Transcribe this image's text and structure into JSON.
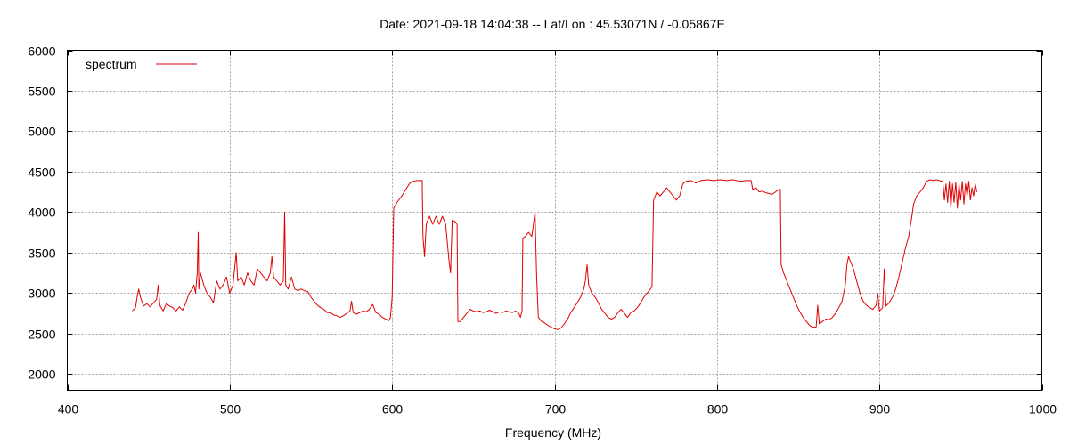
{
  "chart_data": {
    "type": "line",
    "title": "Date: 2021-09-18 14:04:38  --  Lat/Lon : 45.53071N / -0.05867E",
    "xlabel": "Frequency (MHz)",
    "ylabel": "",
    "xlim": [
      400,
      1000
    ],
    "ylim": [
      1800,
      6000
    ],
    "xticks": [
      400,
      500,
      600,
      700,
      800,
      900,
      1000
    ],
    "yticks": [
      2000,
      2500,
      3000,
      3500,
      4000,
      4500,
      5000,
      5500,
      6000
    ],
    "grid": true,
    "legend": "top-left",
    "series": [
      {
        "name": "spectrum",
        "color": "#e00000",
        "points": [
          [
            440,
            2780
          ],
          [
            442,
            2820
          ],
          [
            443,
            2950
          ],
          [
            444,
            3050
          ],
          [
            445,
            2950
          ],
          [
            447,
            2840
          ],
          [
            449,
            2870
          ],
          [
            451,
            2830
          ],
          [
            453,
            2880
          ],
          [
            455,
            2920
          ],
          [
            456,
            3100
          ],
          [
            457,
            2850
          ],
          [
            459,
            2780
          ],
          [
            461,
            2870
          ],
          [
            463,
            2840
          ],
          [
            465,
            2820
          ],
          [
            467,
            2780
          ],
          [
            469,
            2830
          ],
          [
            471,
            2790
          ],
          [
            473,
            2880
          ],
          [
            475,
            3000
          ],
          [
            477,
            3050
          ],
          [
            478,
            3100
          ],
          [
            479,
            3000
          ],
          [
            480,
            3250
          ],
          [
            480.6,
            3750
          ],
          [
            481,
            3050
          ],
          [
            482,
            3250
          ],
          [
            484,
            3100
          ],
          [
            486,
            3000
          ],
          [
            488,
            2950
          ],
          [
            490,
            2880
          ],
          [
            492,
            3150
          ],
          [
            494,
            3050
          ],
          [
            496,
            3100
          ],
          [
            498,
            3200
          ],
          [
            500,
            3000
          ],
          [
            502,
            3100
          ],
          [
            503,
            3300
          ],
          [
            504,
            3500
          ],
          [
            505,
            3150
          ],
          [
            507,
            3200
          ],
          [
            509,
            3100
          ],
          [
            511,
            3250
          ],
          [
            513,
            3150
          ],
          [
            515,
            3100
          ],
          [
            517,
            3300
          ],
          [
            519,
            3250
          ],
          [
            521,
            3200
          ],
          [
            523,
            3150
          ],
          [
            525,
            3250
          ],
          [
            526,
            3450
          ],
          [
            527,
            3200
          ],
          [
            529,
            3150
          ],
          [
            531,
            3100
          ],
          [
            533,
            3150
          ],
          [
            533.8,
            4000
          ],
          [
            534.5,
            3100
          ],
          [
            536,
            3050
          ],
          [
            538,
            3200
          ],
          [
            540,
            3050
          ],
          [
            542,
            3030
          ],
          [
            544,
            3050
          ],
          [
            546,
            3030
          ],
          [
            548,
            3020
          ],
          [
            550,
            2950
          ],
          [
            552,
            2900
          ],
          [
            554,
            2850
          ],
          [
            556,
            2820
          ],
          [
            558,
            2800
          ],
          [
            560,
            2760
          ],
          [
            562,
            2760
          ],
          [
            564,
            2730
          ],
          [
            566,
            2720
          ],
          [
            568,
            2700
          ],
          [
            570,
            2720
          ],
          [
            572,
            2750
          ],
          [
            574,
            2780
          ],
          [
            575,
            2900
          ],
          [
            576,
            2760
          ],
          [
            578,
            2740
          ],
          [
            580,
            2760
          ],
          [
            582,
            2780
          ],
          [
            584,
            2770
          ],
          [
            586,
            2800
          ],
          [
            588,
            2860
          ],
          [
            590,
            2760
          ],
          [
            592,
            2740
          ],
          [
            594,
            2700
          ],
          [
            596,
            2680
          ],
          [
            598,
            2660
          ],
          [
            599,
            2700
          ],
          [
            600,
            2950
          ],
          [
            601,
            4050
          ],
          [
            603,
            4120
          ],
          [
            606,
            4200
          ],
          [
            609,
            4300
          ],
          [
            611,
            4360
          ],
          [
            613,
            4380
          ],
          [
            615,
            4390
          ],
          [
            617,
            4390
          ],
          [
            618.5,
            4390
          ],
          [
            619,
            3700
          ],
          [
            620,
            3450
          ],
          [
            621,
            3850
          ],
          [
            623,
            3950
          ],
          [
            625,
            3850
          ],
          [
            627,
            3950
          ],
          [
            629,
            3850
          ],
          [
            631,
            3950
          ],
          [
            633,
            3850
          ],
          [
            635,
            3400
          ],
          [
            636,
            3250
          ],
          [
            637,
            3900
          ],
          [
            639,
            3880
          ],
          [
            640,
            3850
          ],
          [
            640.5,
            2650
          ],
          [
            642,
            2650
          ],
          [
            644,
            2700
          ],
          [
            646,
            2750
          ],
          [
            648,
            2800
          ],
          [
            650,
            2780
          ],
          [
            652,
            2770
          ],
          [
            654,
            2780
          ],
          [
            656,
            2760
          ],
          [
            658,
            2770
          ],
          [
            660,
            2790
          ],
          [
            662,
            2770
          ],
          [
            664,
            2750
          ],
          [
            666,
            2770
          ],
          [
            668,
            2760
          ],
          [
            670,
            2780
          ],
          [
            672,
            2770
          ],
          [
            674,
            2760
          ],
          [
            676,
            2780
          ],
          [
            678,
            2750
          ],
          [
            679,
            2700
          ],
          [
            680,
            2780
          ],
          [
            680.5,
            3680
          ],
          [
            682,
            3700
          ],
          [
            684,
            3750
          ],
          [
            686,
            3700
          ],
          [
            688,
            4000
          ],
          [
            689,
            3200
          ],
          [
            690,
            2700
          ],
          [
            692,
            2650
          ],
          [
            694,
            2630
          ],
          [
            696,
            2600
          ],
          [
            698,
            2580
          ],
          [
            700,
            2560
          ],
          [
            702,
            2550
          ],
          [
            704,
            2570
          ],
          [
            706,
            2620
          ],
          [
            708,
            2680
          ],
          [
            710,
            2760
          ],
          [
            712,
            2820
          ],
          [
            714,
            2880
          ],
          [
            716,
            2950
          ],
          [
            718,
            3050
          ],
          [
            719,
            3150
          ],
          [
            720,
            3350
          ],
          [
            721,
            3100
          ],
          [
            723,
            3000
          ],
          [
            725,
            2950
          ],
          [
            727,
            2880
          ],
          [
            729,
            2800
          ],
          [
            731,
            2750
          ],
          [
            733,
            2700
          ],
          [
            735,
            2680
          ],
          [
            737,
            2700
          ],
          [
            739,
            2760
          ],
          [
            741,
            2800
          ],
          [
            743,
            2750
          ],
          [
            745,
            2700
          ],
          [
            747,
            2760
          ],
          [
            749,
            2780
          ],
          [
            751,
            2820
          ],
          [
            753,
            2880
          ],
          [
            755,
            2950
          ],
          [
            757,
            3000
          ],
          [
            759,
            3050
          ],
          [
            760,
            3080
          ],
          [
            761,
            4150
          ],
          [
            763,
            4250
          ],
          [
            765,
            4200
          ],
          [
            767,
            4250
          ],
          [
            769,
            4300
          ],
          [
            771,
            4250
          ],
          [
            773,
            4200
          ],
          [
            775,
            4150
          ],
          [
            777,
            4200
          ],
          [
            779,
            4350
          ],
          [
            781,
            4380
          ],
          [
            784,
            4390
          ],
          [
            787,
            4360
          ],
          [
            790,
            4390
          ],
          [
            794,
            4400
          ],
          [
            798,
            4390
          ],
          [
            802,
            4400
          ],
          [
            806,
            4390
          ],
          [
            810,
            4400
          ],
          [
            814,
            4380
          ],
          [
            818,
            4390
          ],
          [
            821,
            4390
          ],
          [
            822,
            4280
          ],
          [
            824,
            4300
          ],
          [
            826,
            4250
          ],
          [
            828,
            4260
          ],
          [
            830,
            4240
          ],
          [
            832,
            4230
          ],
          [
            834,
            4220
          ],
          [
            836,
            4250
          ],
          [
            838,
            4280
          ],
          [
            839,
            4280
          ],
          [
            839.5,
            3350
          ],
          [
            841,
            3250
          ],
          [
            843,
            3150
          ],
          [
            845,
            3050
          ],
          [
            847,
            2950
          ],
          [
            849,
            2850
          ],
          [
            851,
            2770
          ],
          [
            853,
            2700
          ],
          [
            855,
            2650
          ],
          [
            857,
            2600
          ],
          [
            859,
            2580
          ],
          [
            861,
            2580
          ],
          [
            862,
            2850
          ],
          [
            863,
            2620
          ],
          [
            865,
            2650
          ],
          [
            867,
            2680
          ],
          [
            869,
            2670
          ],
          [
            871,
            2700
          ],
          [
            873,
            2750
          ],
          [
            875,
            2820
          ],
          [
            877,
            2900
          ],
          [
            879,
            3100
          ],
          [
            880,
            3350
          ],
          [
            881,
            3450
          ],
          [
            882,
            3400
          ],
          [
            884,
            3300
          ],
          [
            886,
            3150
          ],
          [
            888,
            3000
          ],
          [
            890,
            2900
          ],
          [
            892,
            2850
          ],
          [
            894,
            2820
          ],
          [
            896,
            2800
          ],
          [
            898,
            2850
          ],
          [
            899,
            3000
          ],
          [
            900,
            2780
          ],
          [
            902,
            2820
          ],
          [
            903,
            3300
          ],
          [
            904,
            2840
          ],
          [
            906,
            2880
          ],
          [
            908,
            2950
          ],
          [
            910,
            3050
          ],
          [
            912,
            3200
          ],
          [
            914,
            3380
          ],
          [
            916,
            3550
          ],
          [
            918,
            3700
          ],
          [
            920,
            3950
          ],
          [
            921,
            4100
          ],
          [
            923,
            4200
          ],
          [
            925,
            4250
          ],
          [
            927,
            4300
          ],
          [
            929,
            4380
          ],
          [
            931,
            4400
          ],
          [
            933,
            4390
          ],
          [
            935,
            4400
          ],
          [
            937,
            4390
          ],
          [
            939,
            4380
          ],
          [
            940,
            4150
          ],
          [
            941,
            4350
          ],
          [
            942,
            4120
          ],
          [
            943,
            4380
          ],
          [
            944,
            4050
          ],
          [
            945,
            4350
          ],
          [
            946,
            4120
          ],
          [
            947,
            4370
          ],
          [
            948,
            4050
          ],
          [
            949,
            4350
          ],
          [
            950,
            4150
          ],
          [
            951,
            4380
          ],
          [
            952,
            4100
          ],
          [
            953,
            4350
          ],
          [
            954,
            4200
          ],
          [
            955,
            4380
          ],
          [
            956,
            4150
          ],
          [
            957,
            4300
          ],
          [
            958,
            4200
          ],
          [
            959,
            4350
          ],
          [
            960,
            4250
          ]
        ]
      }
    ]
  }
}
